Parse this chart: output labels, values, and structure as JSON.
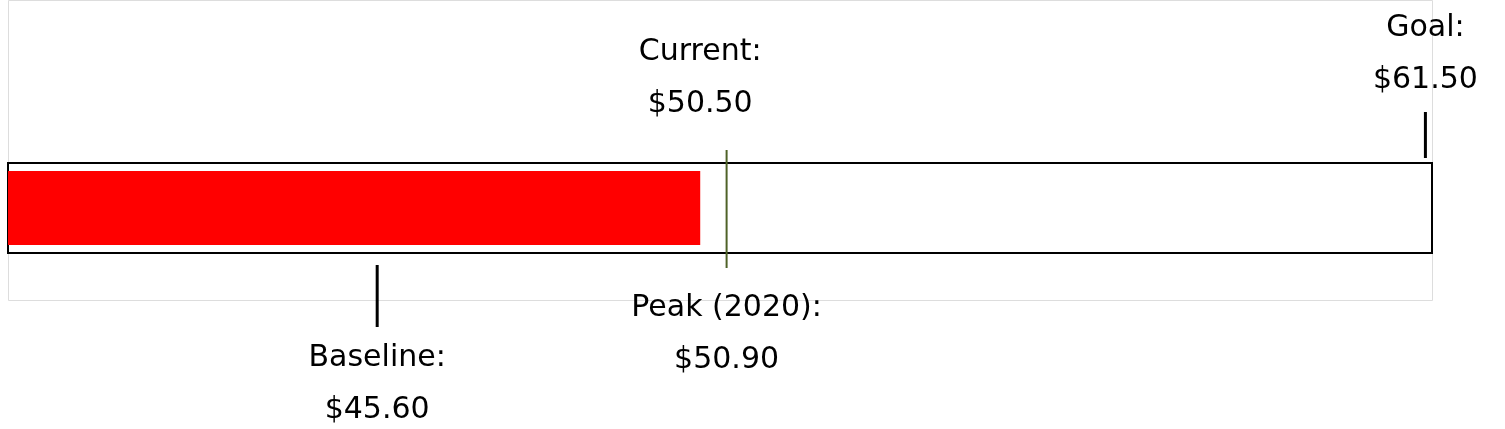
{
  "chart_data": {
    "type": "bar",
    "orientation": "horizontal",
    "categories": [
      null
    ],
    "values": [
      50.5
    ],
    "color": "#ff0000",
    "annotations": [
      "Current:\n$50.50"
    ],
    "xlim": [
      40,
      61.6
    ],
    "tick_labels": false,
    "ref_lines": [
      {
        "axis": "x",
        "value": 50.9,
        "label": "Peak (2020):\n$50.90",
        "color": "#4f6228"
      },
      {
        "axis": "x",
        "value": 45.6,
        "label": "Baseline:\n$45.60",
        "color": "#000000"
      },
      {
        "axis": "x",
        "value": 61.5,
        "label": "Goal:\n$61.50",
        "color": "#000000"
      }
    ]
  }
}
